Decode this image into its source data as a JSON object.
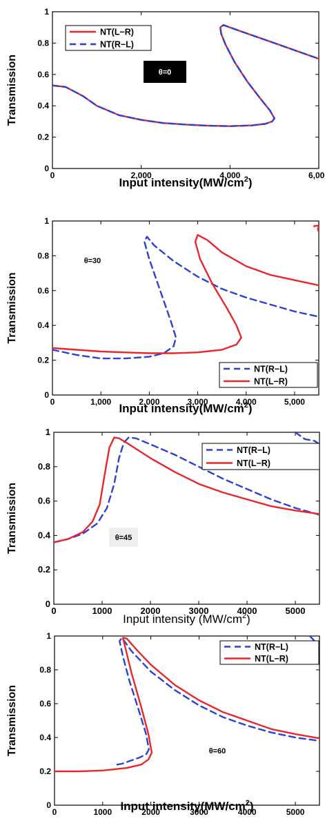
{
  "chart_data": [
    {
      "type": "line",
      "xlabel": "Input intensity(MW/cm",
      "xlabel_sup": "2",
      "xlabel_close": ")",
      "ylabel": "Transmission",
      "xlim": [
        0,
        6000
      ],
      "ylim": [
        0,
        1
      ],
      "xticks": [
        0,
        2000,
        4000,
        6000
      ],
      "xtick_labels": [
        "0",
        "2,000",
        "4,000",
        "6,000"
      ],
      "yticks": [
        0,
        0.2,
        0.4,
        0.6,
        0.8,
        1
      ],
      "ytick_labels": [
        "0",
        "0.2",
        "0.4",
        "0.6",
        "0.8",
        "1"
      ],
      "annotation": "θ=0",
      "annotation_style": "dark",
      "legend_position": "top-left",
      "series": [
        {
          "name": "NT(L−R)",
          "style": "solid",
          "color": "#e8262b",
          "x": [
            0,
            300,
            700,
            1000,
            1500,
            2000,
            2500,
            3000,
            3500,
            4000,
            4500,
            4800,
            4950,
            5000,
            4900,
            4700,
            4400,
            4100,
            3900,
            3800,
            3780,
            3850,
            4000,
            4500,
            5000,
            5500,
            6000
          ],
          "y": [
            0.53,
            0.52,
            0.46,
            0.4,
            0.34,
            0.31,
            0.29,
            0.28,
            0.273,
            0.27,
            0.275,
            0.285,
            0.3,
            0.32,
            0.37,
            0.44,
            0.55,
            0.68,
            0.79,
            0.86,
            0.9,
            0.915,
            0.9,
            0.85,
            0.8,
            0.75,
            0.7
          ]
        },
        {
          "name": "NT(R−L)",
          "style": "dashed",
          "color": "#2c3fd6",
          "x": [
            0,
            300,
            700,
            1000,
            1500,
            2000,
            2500,
            3000,
            3500,
            4000,
            4500,
            4800,
            4950,
            5000,
            4900,
            4700,
            4400,
            4100,
            3900,
            3800,
            3780,
            3850,
            4000,
            4500,
            5000,
            5500,
            6000
          ],
          "y": [
            0.53,
            0.52,
            0.46,
            0.4,
            0.34,
            0.31,
            0.29,
            0.28,
            0.273,
            0.27,
            0.275,
            0.285,
            0.3,
            0.32,
            0.37,
            0.44,
            0.55,
            0.68,
            0.79,
            0.86,
            0.9,
            0.915,
            0.9,
            0.85,
            0.8,
            0.75,
            0.7
          ]
        }
      ]
    },
    {
      "type": "line",
      "xlabel": "Input intensity(MW/cm",
      "xlabel_sup": "2",
      "xlabel_close": ")",
      "ylabel": "Transmission",
      "xlim": [
        0,
        5500
      ],
      "ylim": [
        0,
        1
      ],
      "xticks": [
        0,
        1000,
        2000,
        3000,
        4000,
        5000
      ],
      "xtick_labels": [
        "0",
        "1,000",
        "2,000",
        "3,000",
        "4,000",
        "5,000"
      ],
      "yticks": [
        0,
        0.2,
        0.4,
        0.6,
        0.8,
        1
      ],
      "ytick_labels": [
        "0",
        "0.2",
        "0.4",
        "0.6",
        "0.8",
        "1"
      ],
      "annotation": "θ=30",
      "annotation_style": "plain",
      "legend_position": "bottom-right",
      "series": [
        {
          "name": "NT(R−L)",
          "style": "dashed",
          "color": "#2c3fd6",
          "x": [
            0,
            500,
            1000,
            1500,
            2000,
            2300,
            2500,
            2550,
            2450,
            2300,
            2150,
            2000,
            1900,
            1950,
            2100,
            2500,
            3000,
            3500,
            4000,
            4500,
            5000,
            5500
          ],
          "y": [
            0.26,
            0.23,
            0.21,
            0.21,
            0.22,
            0.24,
            0.28,
            0.33,
            0.42,
            0.54,
            0.66,
            0.78,
            0.88,
            0.91,
            0.86,
            0.77,
            0.68,
            0.61,
            0.56,
            0.52,
            0.48,
            0.45
          ]
        },
        {
          "name": "NT(L−R)",
          "style": "solid",
          "color": "#e8262b",
          "x": [
            0,
            500,
            1000,
            1500,
            2000,
            2500,
            3000,
            3500,
            3800,
            3900,
            3800,
            3600,
            3300,
            3050,
            2950,
            3000,
            3200,
            3500,
            4000,
            4500,
            5000,
            5500
          ],
          "y": [
            0.27,
            0.26,
            0.25,
            0.245,
            0.24,
            0.24,
            0.245,
            0.26,
            0.29,
            0.33,
            0.4,
            0.5,
            0.64,
            0.78,
            0.88,
            0.92,
            0.89,
            0.82,
            0.74,
            0.69,
            0.66,
            0.63
          ]
        },
        {
          "name": "",
          "style": "solid",
          "color": "#e8262b",
          "x": [
            5400,
            5500,
            5480,
            5500
          ],
          "y": [
            0.97,
            0.975,
            0.95,
            0.94
          ]
        }
      ]
    },
    {
      "type": "line",
      "xlabel": "Input intensity (MW/cm",
      "xlabel_sup": "2",
      "xlabel_close": ")",
      "ylabel": "Transmission",
      "xlim": [
        0,
        5500
      ],
      "ylim": [
        0,
        1
      ],
      "xticks": [
        0,
        1000,
        2000,
        3000,
        4000,
        5000
      ],
      "xtick_labels": [
        "0",
        "1000",
        "2000",
        "3000",
        "4000",
        "5000"
      ],
      "yticks": [
        0,
        0.2,
        0.4,
        0.6,
        0.8,
        1
      ],
      "ytick_labels": [
        "0",
        "0.2",
        "0.4",
        "0.6",
        "0.8",
        "1"
      ],
      "annotation": "θ=45",
      "annotation_style": "light",
      "legend_position": "top-right",
      "series": [
        {
          "name": "NT(R−L)",
          "style": "dashed",
          "color": "#2c3fd6",
          "x": [
            0,
            300,
            600,
            900,
            1100,
            1250,
            1350,
            1450,
            1550,
            1700,
            2000,
            2500,
            3000,
            3500,
            4000,
            4500,
            5000,
            5500
          ],
          "y": [
            0.36,
            0.38,
            0.41,
            0.47,
            0.56,
            0.7,
            0.85,
            0.94,
            0.97,
            0.965,
            0.93,
            0.87,
            0.8,
            0.73,
            0.67,
            0.61,
            0.56,
            0.52
          ]
        },
        {
          "name": "NT(L−R)",
          "style": "solid",
          "color": "#e8262b",
          "x": [
            0,
            300,
            600,
            800,
            950,
            1050,
            1150,
            1250,
            1350,
            1500,
            2000,
            2500,
            3000,
            3500,
            4000,
            4500,
            5000,
            5500
          ],
          "y": [
            0.36,
            0.38,
            0.42,
            0.48,
            0.58,
            0.75,
            0.91,
            0.97,
            0.965,
            0.94,
            0.85,
            0.77,
            0.7,
            0.65,
            0.61,
            0.57,
            0.545,
            0.525
          ]
        },
        {
          "name": "",
          "style": "dashed",
          "color": "#2c3fd6",
          "x": [
            5000,
            5200,
            5400,
            5500
          ],
          "y": [
            1.0,
            0.96,
            0.95,
            0.93
          ]
        }
      ]
    },
    {
      "type": "line",
      "xlabel": "Input intensity(MW/cm",
      "xlabel_sup": "2",
      "xlabel_close": ")",
      "ylabel": "Transmission",
      "xlim": [
        0,
        5500
      ],
      "ylim": [
        0,
        1
      ],
      "xticks": [
        0,
        1000,
        2000,
        3000,
        4000,
        5000
      ],
      "xtick_labels": [
        "0",
        "1000",
        "2000",
        "3000",
        "4000",
        "5000"
      ],
      "yticks": [
        0,
        0.2,
        0.4,
        0.6,
        0.8,
        1
      ],
      "ytick_labels": [
        "0",
        "0.2",
        "0.4",
        "0.6",
        "0.8",
        "1"
      ],
      "annotation": "θ=60",
      "annotation_style": "plain",
      "legend_position": "top-right",
      "series": [
        {
          "name": "NT(R−L)",
          "style": "dashed",
          "color": "#2c3fd6",
          "x": [
            1300,
            1400,
            1550,
            1750,
            1900,
            1960,
            1900,
            1750,
            1550,
            1420,
            1350,
            1400,
            1600,
            2000,
            2500,
            3000,
            3500,
            4000,
            4500,
            5000,
            5500
          ],
          "y": [
            0.24,
            0.245,
            0.26,
            0.28,
            0.3,
            0.33,
            0.42,
            0.56,
            0.74,
            0.88,
            0.97,
            0.99,
            0.91,
            0.79,
            0.68,
            0.59,
            0.52,
            0.47,
            0.43,
            0.4,
            0.38
          ]
        },
        {
          "name": "NT(L−R)",
          "style": "solid",
          "color": "#e8262b",
          "x": [
            0,
            500,
            1000,
            1500,
            1800,
            1950,
            2020,
            1950,
            1800,
            1600,
            1480,
            1420,
            1500,
            1700,
            2000,
            2500,
            3000,
            3500,
            4000,
            4500,
            5000,
            5500
          ],
          "y": [
            0.2,
            0.2,
            0.205,
            0.22,
            0.24,
            0.27,
            0.31,
            0.42,
            0.58,
            0.78,
            0.92,
            0.99,
            0.985,
            0.92,
            0.83,
            0.71,
            0.62,
            0.55,
            0.5,
            0.45,
            0.42,
            0.395
          ]
        },
        {
          "name": "",
          "style": "dashed",
          "color": "#2c3fd6",
          "x": [
            5300,
            5400,
            5500
          ],
          "y": [
            1.0,
            0.97,
            0.94
          ]
        }
      ]
    }
  ]
}
